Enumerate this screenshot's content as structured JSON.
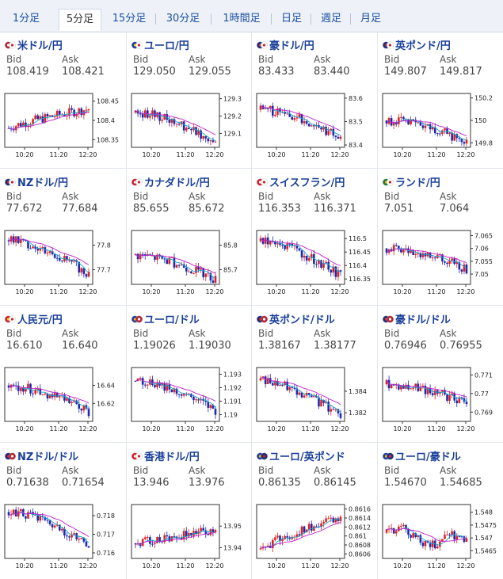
{
  "tabs": [
    {
      "label": "1分足"
    },
    {
      "label": "5分足",
      "active": true
    },
    {
      "label": "15分足"
    },
    {
      "label": "30分足"
    },
    {
      "label": "1時間足"
    },
    {
      "label": "日足"
    },
    {
      "label": "週足"
    },
    {
      "label": "月足"
    }
  ],
  "labels": {
    "bid": "Bid",
    "ask": "Ask"
  },
  "x_ticks": [
    "10:20",
    "11:20",
    "12:20"
  ],
  "colors": {
    "up": "#e02020",
    "down": "#1a2ab0",
    "ma_fast": "#1fa3c9",
    "ma_slow": "#c01ec9",
    "title": "#1a3f9a"
  },
  "cards": [
    {
      "pair": "米ドル/円",
      "flag": "us-jp-flag",
      "bid": "108.419",
      "ask": "108.421",
      "chart": {
        "y_ticks": [
          "108.45",
          "108.4",
          "108.35"
        ],
        "ylim": [
          108.33,
          108.47
        ],
        "start": 108.38,
        "end": 108.43,
        "shape": "rise"
      }
    },
    {
      "pair": "ユーロ/円",
      "flag": "eu-jp-flag",
      "bid": "129.050",
      "ask": "129.055",
      "chart": {
        "y_ticks": [
          "129.3",
          "129.2",
          "129.1"
        ],
        "ylim": [
          129.02,
          129.33
        ],
        "start": 129.22,
        "end": 129.05,
        "shape": "fall"
      }
    },
    {
      "pair": "豪ドル/円",
      "flag": "au-jp-flag",
      "bid": "83.433",
      "ask": "83.440",
      "chart": {
        "y_ticks": [
          "83.6",
          "83.5",
          "83.4"
        ],
        "ylim": [
          83.39,
          83.62
        ],
        "start": 83.55,
        "end": 83.43,
        "shape": "fall"
      }
    },
    {
      "pair": "英ポンド/円",
      "flag": "gb-jp-flag",
      "bid": "149.807",
      "ask": "149.817",
      "chart": {
        "y_ticks": [
          "150.2",
          "150",
          "149.8"
        ],
        "ylim": [
          149.76,
          150.24
        ],
        "start": 150.0,
        "end": 149.81,
        "shape": "fall"
      }
    },
    {
      "pair": "NZドル/円",
      "flag": "nz-jp-flag",
      "bid": "77.672",
      "ask": "77.684",
      "chart": {
        "y_ticks": [
          "77.8",
          "77.7"
        ],
        "ylim": [
          77.64,
          77.86
        ],
        "start": 77.82,
        "end": 77.68,
        "shape": "fall"
      }
    },
    {
      "pair": "カナダドル/円",
      "flag": "ca-jp-flag",
      "bid": "85.655",
      "ask": "85.672",
      "chart": {
        "y_ticks": [
          "85.8",
          "85.7"
        ],
        "ylim": [
          85.64,
          85.86
        ],
        "start": 85.76,
        "end": 85.66,
        "shape": "fall"
      }
    },
    {
      "pair": "スイスフラン/円",
      "flag": "ch-jp-flag",
      "bid": "116.353",
      "ask": "116.371",
      "chart": {
        "y_ticks": [
          "116.5",
          "116.45",
          "116.4",
          "116.35"
        ],
        "ylim": [
          116.33,
          116.53
        ],
        "start": 116.49,
        "end": 116.36,
        "shape": "fall"
      }
    },
    {
      "pair": "ランド/円",
      "flag": "za-jp-flag",
      "bid": "7.051",
      "ask": "7.064",
      "chart": {
        "y_ticks": [
          "7.065",
          "7.06",
          "7.055",
          "7.05"
        ],
        "ylim": [
          7.046,
          7.067
        ],
        "start": 7.06,
        "end": 7.052,
        "shape": "fall"
      }
    },
    {
      "pair": "人民元/円",
      "flag": "cn-jp-flag",
      "bid": "16.610",
      "ask": "16.640",
      "chart": {
        "y_ticks": [
          "16.64",
          "16.62"
        ],
        "ylim": [
          16.6,
          16.66
        ],
        "start": 16.64,
        "end": 16.61,
        "shape": "fall"
      }
    },
    {
      "pair": "ユーロ/ドル",
      "flag": "eu-us-flag",
      "bid": "1.19026",
      "ask": "1.19030",
      "chart": {
        "y_ticks": [
          "1.193",
          "1.192",
          "1.191",
          "1.19"
        ],
        "ylim": [
          1.1895,
          1.1935
        ],
        "start": 1.1925,
        "end": 1.1902,
        "shape": "fall"
      }
    },
    {
      "pair": "英ポンド/ドル",
      "flag": "gb-us-flag",
      "bid": "1.38167",
      "ask": "1.38177",
      "chart": {
        "y_ticks": [
          "1.384",
          "1.382"
        ],
        "ylim": [
          1.3812,
          1.3862
        ],
        "start": 1.385,
        "end": 1.3817,
        "shape": "fall"
      }
    },
    {
      "pair": "豪ドル/ドル",
      "flag": "au-us-flag",
      "bid": "0.76946",
      "ask": "0.76955",
      "chart": {
        "y_ticks": [
          "0.771",
          "0.77",
          "0.769"
        ],
        "ylim": [
          0.7685,
          0.7714
        ],
        "start": 0.7705,
        "end": 0.7695,
        "shape": "fall"
      }
    },
    {
      "pair": "NZドル/ドル",
      "flag": "nz-us-flag",
      "bid": "0.71638",
      "ask": "0.71654",
      "chart": {
        "y_ticks": [
          "0.718",
          "0.717",
          "0.716"
        ],
        "ylim": [
          0.7157,
          0.7186
        ],
        "start": 0.7182,
        "end": 0.7163,
        "shape": "fall"
      }
    },
    {
      "pair": "香港ドル/円",
      "flag": "hk-jp-flag",
      "bid": "13.946",
      "ask": "13.976",
      "chart": {
        "y_ticks": [
          "13.95",
          "13.94"
        ],
        "ylim": [
          13.935,
          13.96
        ],
        "start": 13.942,
        "end": 13.948,
        "shape": "rise"
      }
    },
    {
      "pair": "ユーロ/英ポンド",
      "flag": "eu-gb-flag",
      "bid": "0.86135",
      "ask": "0.86145",
      "chart": {
        "y_ticks": [
          "0.8616",
          "0.8614",
          "0.8612",
          "0.861",
          "0.8608",
          "0.8606"
        ],
        "ylim": [
          0.8605,
          0.8617
        ],
        "start": 0.8607,
        "end": 0.8614,
        "shape": "rise"
      }
    },
    {
      "pair": "ユーロ/豪ドル",
      "flag": "eu-au-flag",
      "bid": "1.54670",
      "ask": "1.54685",
      "chart": {
        "y_ticks": [
          "1.548",
          "1.5475",
          "1.547",
          "1.5465"
        ],
        "ylim": [
          1.5462,
          1.5483
        ],
        "start": 1.5472,
        "end": 1.5468,
        "shape": "flat"
      }
    }
  ]
}
